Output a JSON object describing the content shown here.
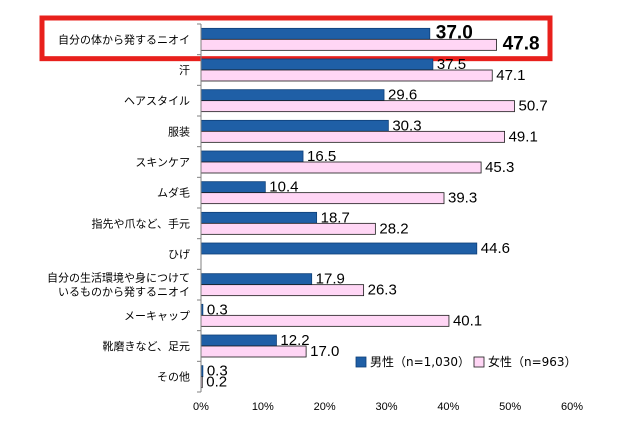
{
  "chart_data": {
    "type": "bar",
    "orientation": "horizontal",
    "categories": [
      [
        "自分の体から発するニオイ"
      ],
      [
        "汗"
      ],
      [
        "ヘアスタイル"
      ],
      [
        "服装"
      ],
      [
        "スキンケア"
      ],
      [
        "ムダ毛"
      ],
      [
        "指先や爪など、手元"
      ],
      [
        "ひげ"
      ],
      [
        "自分の生活環境や身につけて",
        "いるものから発するニオイ"
      ],
      [
        "メーキャップ"
      ],
      [
        "靴磨きなど、足元"
      ],
      [
        "その他"
      ]
    ],
    "series": [
      {
        "name": "男性（n=1,030）",
        "color": "#1f5fa6",
        "values": [
          37.0,
          37.5,
          29.6,
          30.3,
          16.5,
          10.4,
          18.7,
          44.6,
          17.9,
          0.3,
          12.2,
          0.3
        ],
        "labels": [
          "37.0",
          "37.5",
          "29.6",
          "30.3",
          "16.5",
          "10.4",
          "18.7",
          "44.6",
          "17.9",
          "0.3",
          "12.2",
          "0.3"
        ]
      },
      {
        "name": "女性（n=963）",
        "color": "#ffd6f5",
        "values": [
          47.8,
          47.1,
          50.7,
          49.1,
          45.3,
          39.3,
          28.2,
          null,
          26.3,
          40.1,
          17.0,
          0.2
        ],
        "labels": [
          "47.8",
          "47.1",
          "50.7",
          "49.1",
          "45.3",
          "39.3",
          "28.2",
          "",
          "26.3",
          "40.1",
          "17.0",
          "0.2"
        ]
      }
    ],
    "xlim": [
      0,
      60
    ],
    "xticks": [
      "0%",
      "10%",
      "20%",
      "30%",
      "40%",
      "50%",
      "60%"
    ],
    "highlight_category_index": 0,
    "highlight_color": "#e8201c",
    "legend_position": "bottom-right",
    "grid": false
  }
}
